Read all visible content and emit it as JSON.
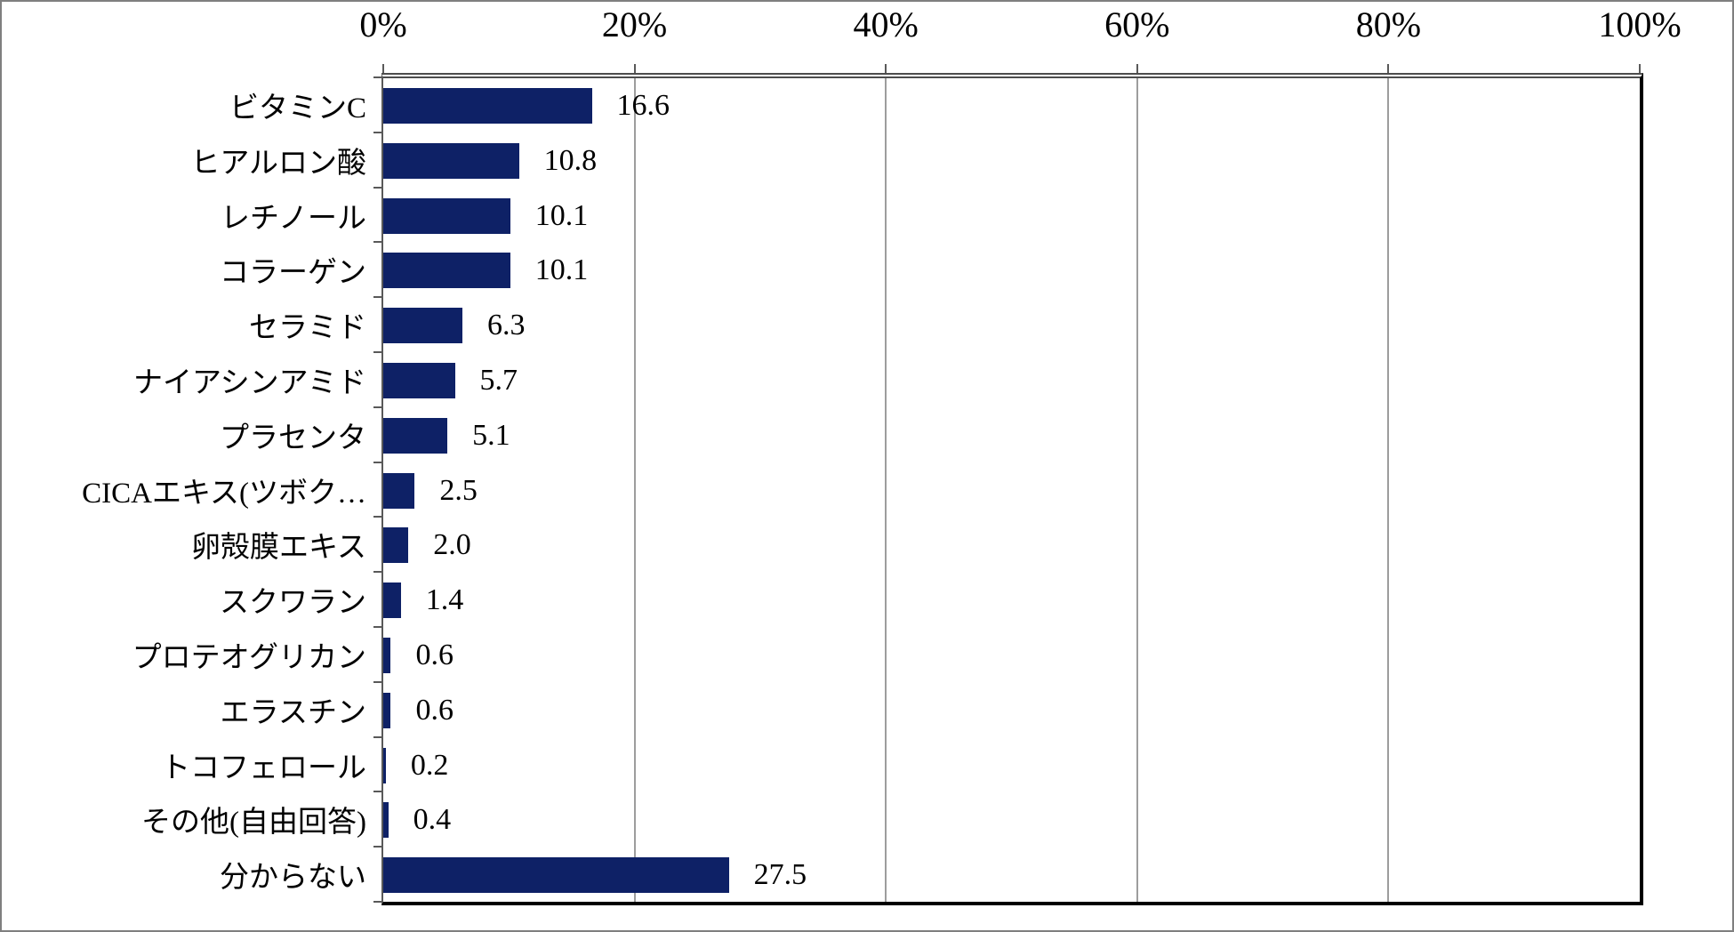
{
  "chart_data": {
    "type": "bar",
    "orientation": "horizontal",
    "title": "",
    "xlabel": "",
    "ylabel": "",
    "xlim": [
      0,
      100
    ],
    "x_tick_labels": [
      "0%",
      "20%",
      "40%",
      "60%",
      "80%",
      "100%"
    ],
    "x_tick_values": [
      0,
      20,
      40,
      60,
      80,
      100
    ],
    "grid": true,
    "legend": false,
    "bar_color": "#0e2166",
    "categories": [
      "ビタミンC",
      "ヒアルロン酸",
      "レチノール",
      "コラーゲン",
      "セラミド",
      "ナイアシンアミド",
      "プラセンタ",
      "CICAエキス(ツボク…",
      "卵殻膜エキス",
      "スクワラン",
      "プロテオグリカン",
      "エラスチン",
      "トコフェロール",
      "その他(自由回答)",
      "分からない"
    ],
    "values": [
      16.6,
      10.8,
      10.1,
      10.1,
      6.3,
      5.7,
      5.1,
      2.5,
      2.0,
      1.4,
      0.6,
      0.6,
      0.2,
      0.4,
      27.5
    ],
    "value_labels": [
      "16.6",
      "10.8",
      "10.1",
      "10.1",
      "6.3",
      "5.7",
      "5.1",
      "2.5",
      "2.0",
      "1.4",
      "0.6",
      "0.6",
      "0.2",
      "0.4",
      "27.5"
    ]
  },
  "colors": {
    "bar": "#0e2166",
    "gridline": "#9d9d9d",
    "axis": "#595959",
    "plot_border": "#000000",
    "frame_border": "#7f7f7f",
    "text": "#000000"
  }
}
